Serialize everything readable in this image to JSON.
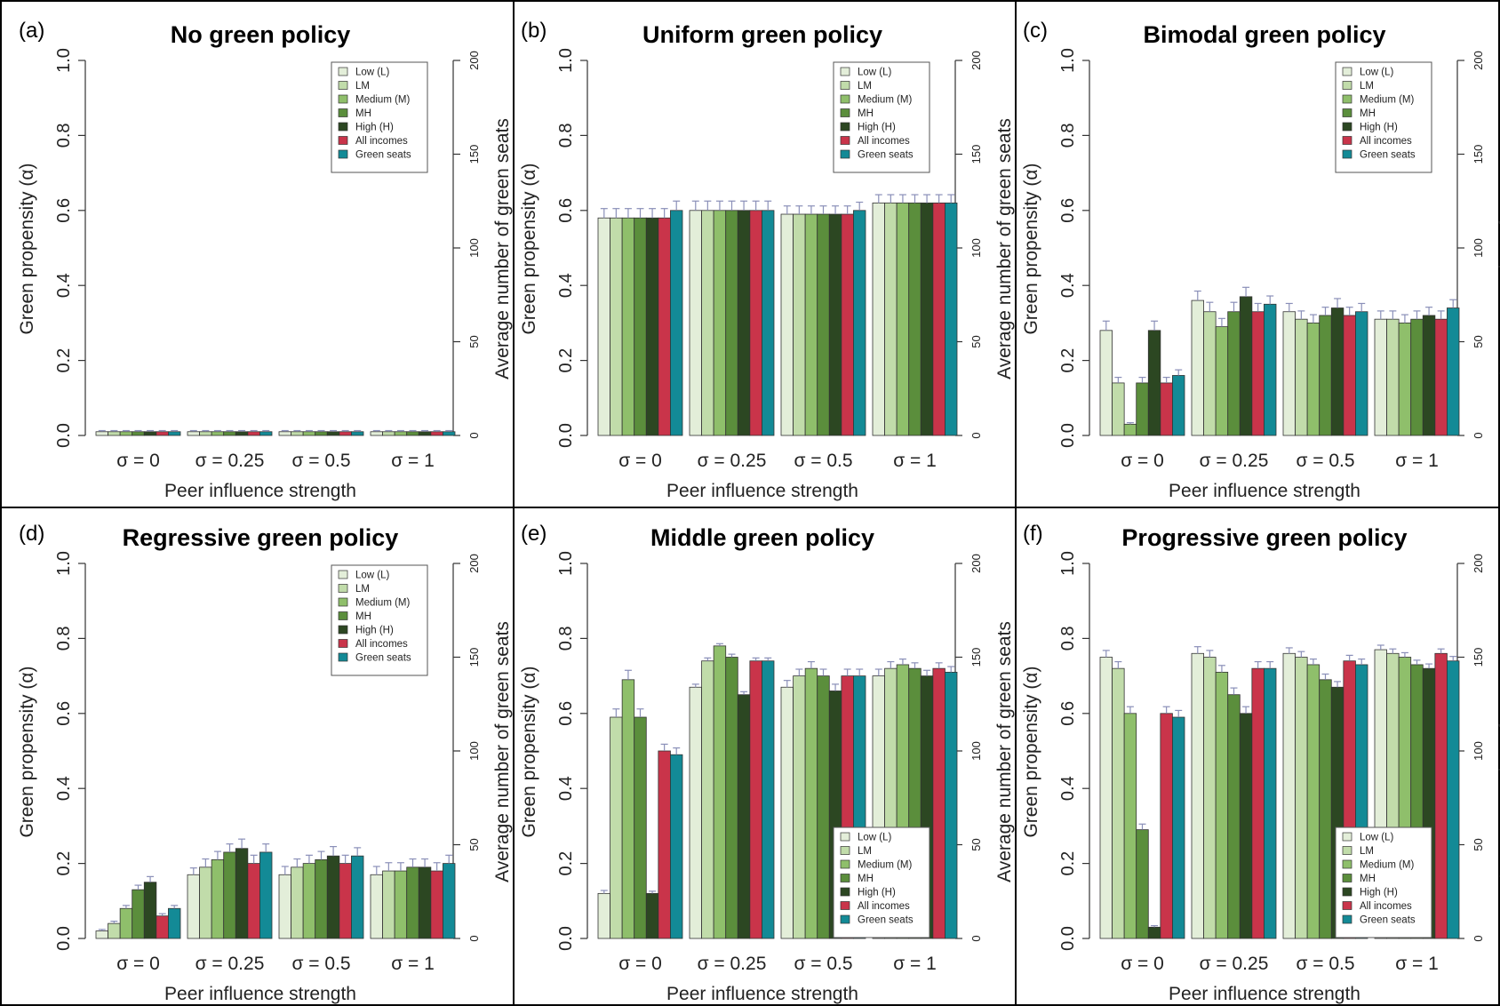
{
  "figure": {
    "categories": [
      "σ = 0",
      "σ = 0.25",
      "σ = 0.5",
      "σ = 1"
    ],
    "xlabel": "Peer influence strength",
    "ylabel": "Green propensity (α)",
    "ylabel_right": "Average number of green seats",
    "yticks": [
      "0.0",
      "0.2",
      "0.4",
      "0.6",
      "0.8",
      "1.0"
    ],
    "yticks_right": [
      "0",
      "50",
      "100",
      "150",
      "200"
    ],
    "legend_labels": [
      "Low (L)",
      "LM",
      "Medium (M)",
      "MH",
      "High (H)",
      "All incomes",
      "Green seats"
    ],
    "series_colors": [
      "#e3eed9",
      "#c1dcaa",
      "#8fbf6b",
      "#5b8e3c",
      "#2c4722",
      "#c9344a",
      "#138a96"
    ]
  },
  "chart_data": [
    {
      "type": "bar",
      "panel_label": "(a)",
      "title": "No green policy",
      "ylim": [
        0,
        1
      ],
      "ylim_right": [
        0,
        200
      ],
      "legend_placement": "top-right",
      "series": [
        {
          "name": "Low (L)",
          "values": [
            0.01,
            0.01,
            0.01,
            0.01
          ],
          "errors": [
            0.003,
            0.003,
            0.003,
            0.003
          ]
        },
        {
          "name": "LM",
          "values": [
            0.01,
            0.01,
            0.01,
            0.01
          ],
          "errors": [
            0.003,
            0.003,
            0.003,
            0.003
          ]
        },
        {
          "name": "Medium (M)",
          "values": [
            0.01,
            0.01,
            0.01,
            0.01
          ],
          "errors": [
            0.003,
            0.003,
            0.003,
            0.003
          ]
        },
        {
          "name": "MH",
          "values": [
            0.01,
            0.01,
            0.01,
            0.01
          ],
          "errors": [
            0.003,
            0.003,
            0.003,
            0.003
          ]
        },
        {
          "name": "High (H)",
          "values": [
            0.01,
            0.01,
            0.01,
            0.01
          ],
          "errors": [
            0.003,
            0.003,
            0.003,
            0.003
          ]
        },
        {
          "name": "All incomes",
          "values": [
            0.01,
            0.01,
            0.01,
            0.01
          ],
          "errors": [
            0.003,
            0.003,
            0.003,
            0.003
          ]
        },
        {
          "name": "Green seats",
          "values": [
            0.01,
            0.01,
            0.01,
            0.01
          ],
          "errors": [
            0.003,
            0.003,
            0.003,
            0.003
          ]
        }
      ]
    },
    {
      "type": "bar",
      "panel_label": "(b)",
      "title": "Uniform green policy",
      "ylim": [
        0,
        1
      ],
      "ylim_right": [
        0,
        200
      ],
      "legend_placement": "top-right",
      "series": [
        {
          "name": "Low (L)",
          "values": [
            0.58,
            0.6,
            0.59,
            0.62
          ],
          "errors": [
            0.025,
            0.025,
            0.022,
            0.022
          ]
        },
        {
          "name": "LM",
          "values": [
            0.58,
            0.6,
            0.59,
            0.62
          ],
          "errors": [
            0.025,
            0.025,
            0.022,
            0.022
          ]
        },
        {
          "name": "Medium (M)",
          "values": [
            0.58,
            0.6,
            0.59,
            0.62
          ],
          "errors": [
            0.025,
            0.025,
            0.022,
            0.022
          ]
        },
        {
          "name": "MH",
          "values": [
            0.58,
            0.6,
            0.59,
            0.62
          ],
          "errors": [
            0.025,
            0.025,
            0.022,
            0.022
          ]
        },
        {
          "name": "High (H)",
          "values": [
            0.58,
            0.6,
            0.59,
            0.62
          ],
          "errors": [
            0.025,
            0.025,
            0.022,
            0.022
          ]
        },
        {
          "name": "All incomes",
          "values": [
            0.58,
            0.6,
            0.59,
            0.62
          ],
          "errors": [
            0.025,
            0.025,
            0.022,
            0.022
          ]
        },
        {
          "name": "Green seats",
          "values": [
            0.6,
            0.6,
            0.6,
            0.62
          ],
          "errors": [
            0.025,
            0.025,
            0.022,
            0.022
          ]
        }
      ]
    },
    {
      "type": "bar",
      "panel_label": "(c)",
      "title": "Bimodal green policy",
      "ylim": [
        0,
        1
      ],
      "ylim_right": [
        0,
        200
      ],
      "legend_placement": "top-right",
      "series": [
        {
          "name": "Low (L)",
          "values": [
            0.28,
            0.36,
            0.33,
            0.31
          ],
          "errors": [
            0.025,
            0.025,
            0.022,
            0.022
          ]
        },
        {
          "name": "LM",
          "values": [
            0.14,
            0.33,
            0.31,
            0.31
          ],
          "errors": [
            0.015,
            0.025,
            0.022,
            0.022
          ]
        },
        {
          "name": "Medium (M)",
          "values": [
            0.03,
            0.29,
            0.3,
            0.3
          ],
          "errors": [
            0.004,
            0.022,
            0.022,
            0.022
          ]
        },
        {
          "name": "MH",
          "values": [
            0.14,
            0.33,
            0.32,
            0.31
          ],
          "errors": [
            0.015,
            0.025,
            0.022,
            0.022
          ]
        },
        {
          "name": "High (H)",
          "values": [
            0.28,
            0.37,
            0.34,
            0.32
          ],
          "errors": [
            0.025,
            0.025,
            0.025,
            0.022
          ]
        },
        {
          "name": "All incomes",
          "values": [
            0.14,
            0.33,
            0.32,
            0.31
          ],
          "errors": [
            0.015,
            0.022,
            0.022,
            0.022
          ]
        },
        {
          "name": "Green seats",
          "values": [
            0.16,
            0.35,
            0.33,
            0.34
          ],
          "errors": [
            0.015,
            0.022,
            0.022,
            0.022
          ]
        }
      ]
    },
    {
      "type": "bar",
      "panel_label": "(d)",
      "title": "Regressive green policy",
      "ylim": [
        0,
        1
      ],
      "ylim_right": [
        0,
        200
      ],
      "legend_placement": "top-right",
      "series": [
        {
          "name": "Low (L)",
          "values": [
            0.02,
            0.17,
            0.17,
            0.17
          ],
          "errors": [
            0.004,
            0.018,
            0.022,
            0.022
          ]
        },
        {
          "name": "LM",
          "values": [
            0.04,
            0.19,
            0.19,
            0.18
          ],
          "errors": [
            0.006,
            0.022,
            0.022,
            0.022
          ]
        },
        {
          "name": "Medium (M)",
          "values": [
            0.08,
            0.21,
            0.2,
            0.18
          ],
          "errors": [
            0.008,
            0.022,
            0.022,
            0.022
          ]
        },
        {
          "name": "MH",
          "values": [
            0.13,
            0.23,
            0.21,
            0.19
          ],
          "errors": [
            0.012,
            0.022,
            0.022,
            0.022
          ]
        },
        {
          "name": "High (H)",
          "values": [
            0.15,
            0.24,
            0.22,
            0.19
          ],
          "errors": [
            0.015,
            0.025,
            0.025,
            0.022
          ]
        },
        {
          "name": "All incomes",
          "values": [
            0.06,
            0.2,
            0.2,
            0.18
          ],
          "errors": [
            0.006,
            0.022,
            0.022,
            0.022
          ]
        },
        {
          "name": "Green seats",
          "values": [
            0.08,
            0.23,
            0.22,
            0.2
          ],
          "errors": [
            0.008,
            0.022,
            0.022,
            0.022
          ]
        }
      ]
    },
    {
      "type": "bar",
      "panel_label": "(e)",
      "title": "Middle green policy",
      "ylim": [
        0,
        1
      ],
      "ylim_right": [
        0,
        200
      ],
      "legend_placement": "bottom-right",
      "series": [
        {
          "name": "Low (L)",
          "values": [
            0.12,
            0.67,
            0.67,
            0.7
          ],
          "errors": [
            0.008,
            0.008,
            0.018,
            0.018
          ]
        },
        {
          "name": "LM",
          "values": [
            0.59,
            0.74,
            0.7,
            0.72
          ],
          "errors": [
            0.022,
            0.008,
            0.018,
            0.018
          ]
        },
        {
          "name": "Medium (M)",
          "values": [
            0.69,
            0.78,
            0.72,
            0.73
          ],
          "errors": [
            0.025,
            0.006,
            0.018,
            0.015
          ]
        },
        {
          "name": "MH",
          "values": [
            0.59,
            0.75,
            0.7,
            0.72
          ],
          "errors": [
            0.022,
            0.008,
            0.018,
            0.015
          ]
        },
        {
          "name": "High (H)",
          "values": [
            0.12,
            0.65,
            0.66,
            0.7
          ],
          "errors": [
            0.006,
            0.008,
            0.018,
            0.015
          ]
        },
        {
          "name": "All incomes",
          "values": [
            0.5,
            0.74,
            0.7,
            0.72
          ],
          "errors": [
            0.018,
            0.008,
            0.018,
            0.015
          ]
        },
        {
          "name": "Green seats",
          "values": [
            0.49,
            0.74,
            0.7,
            0.71
          ],
          "errors": [
            0.018,
            0.008,
            0.018,
            0.015
          ]
        }
      ]
    },
    {
      "type": "bar",
      "panel_label": "(f)",
      "title": "Progressive green policy",
      "ylim": [
        0,
        1
      ],
      "ylim_right": [
        0,
        200
      ],
      "legend_placement": "bottom-right",
      "series": [
        {
          "name": "Low (L)",
          "values": [
            0.75,
            0.76,
            0.76,
            0.77
          ],
          "errors": [
            0.018,
            0.018,
            0.015,
            0.012
          ]
        },
        {
          "name": "LM",
          "values": [
            0.72,
            0.75,
            0.75,
            0.76
          ],
          "errors": [
            0.018,
            0.018,
            0.015,
            0.012
          ]
        },
        {
          "name": "Medium (M)",
          "values": [
            0.6,
            0.71,
            0.73,
            0.75
          ],
          "errors": [
            0.018,
            0.018,
            0.015,
            0.012
          ]
        },
        {
          "name": "MH",
          "values": [
            0.29,
            0.65,
            0.69,
            0.73
          ],
          "errors": [
            0.015,
            0.018,
            0.015,
            0.012
          ]
        },
        {
          "name": "High (H)",
          "values": [
            0.03,
            0.6,
            0.67,
            0.72
          ],
          "errors": [
            0.004,
            0.018,
            0.015,
            0.012
          ]
        },
        {
          "name": "All incomes",
          "values": [
            0.6,
            0.72,
            0.74,
            0.76
          ],
          "errors": [
            0.018,
            0.018,
            0.015,
            0.012
          ]
        },
        {
          "name": "Green seats",
          "values": [
            0.59,
            0.72,
            0.73,
            0.74
          ],
          "errors": [
            0.018,
            0.018,
            0.015,
            0.012
          ]
        }
      ]
    }
  ]
}
